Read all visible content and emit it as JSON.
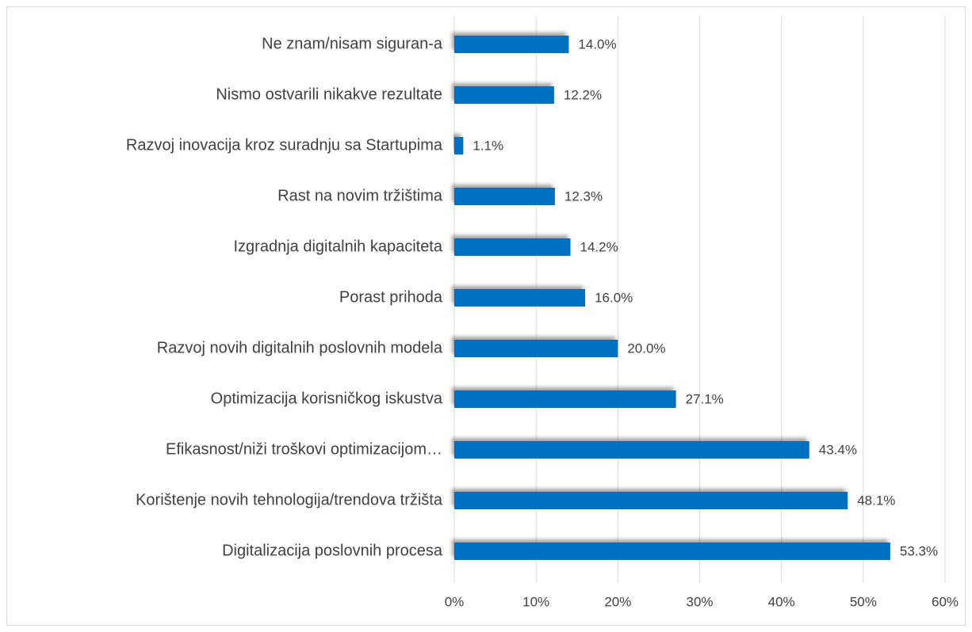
{
  "chart_data": {
    "type": "barh",
    "categories": [
      "Ne znam/nisam siguran-a",
      "Nismo ostvarili nikakve rezultate",
      "Razvoj inovacija kroz suradnju sa Startupima",
      "Rast na novim tržištima",
      "Izgradnja digitalnih kapaciteta",
      "Porast prihoda",
      "Razvoj novih digitalnih poslovnih modela",
      "Optimizacija korisničkog iskustva",
      "Efikasnost/niži troškovi optimizacijom…",
      "Korištenje novih tehnologija/trendova tržišta",
      "Digitalizacija poslovnih procesa"
    ],
    "values": [
      14.0,
      12.2,
      1.1,
      12.3,
      14.2,
      16.0,
      20.0,
      27.1,
      43.4,
      48.1,
      53.3
    ],
    "value_labels": [
      "14.0%",
      "12.2%",
      "1.1%",
      "12.3%",
      "14.2%",
      "16.0%",
      "20.0%",
      "27.1%",
      "43.4%",
      "48.1%",
      "53.3%"
    ],
    "color": "#0070c0",
    "xlim": [
      0,
      60
    ],
    "xticks": [
      {
        "value": 0,
        "label": "0%"
      },
      {
        "value": 10,
        "label": "10%"
      },
      {
        "value": 20,
        "label": "20%"
      },
      {
        "value": 30,
        "label": "30%"
      },
      {
        "value": 40,
        "label": "40%"
      },
      {
        "value": 50,
        "label": "50%"
      },
      {
        "value": 60,
        "label": "60%"
      }
    ],
    "grid": true
  }
}
